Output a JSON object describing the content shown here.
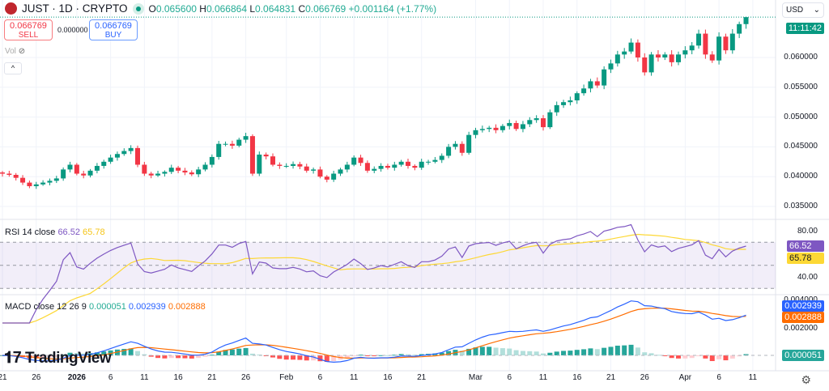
{
  "header": {
    "symbol_title": "JUST · 1D · CRYPTO",
    "o_label": "O",
    "o": "0.065600",
    "h_label": "H",
    "h": "0.066864",
    "l_label": "L",
    "l": "0.064831",
    "c_label": "C",
    "c": "0.066769",
    "change": "+0.001164 (+1.77%)"
  },
  "trade": {
    "sell_price": "0.066769",
    "sell_label": "SELL",
    "spread": "0.000000",
    "buy_price": "0.066769",
    "buy_label": "BUY"
  },
  "volume": {
    "label": "Vol",
    "icon": "eye-off-icon"
  },
  "collapse": {
    "icon": "chevron-up-icon",
    "glyph": "^"
  },
  "currency": {
    "label": "USD",
    "glyph": "⌄"
  },
  "countdown": "11:11:42",
  "colors": {
    "up": "#089981",
    "down": "#f23645",
    "rsi": "#7e57c2",
    "rsi_ma": "#fdd835",
    "macd": "#2962ff",
    "signal": "#ff6d00"
  },
  "price_axis": [
    "0.060000",
    "0.055000",
    "0.050000",
    "0.045000",
    "0.040000",
    "0.035000"
  ],
  "rsi": {
    "title": "RSI 14 close",
    "value": "66.52",
    "ma_value": "65.78",
    "axis": [
      "80.00",
      "40.00"
    ]
  },
  "macd": {
    "title": "MACD close 12 26 9",
    "hist": "0.000051",
    "macd": "0.002939",
    "signal": "0.002888",
    "axis": [
      "0.004000",
      "0.002000"
    ]
  },
  "x_axis": [
    "21",
    "26",
    "2026",
    "6",
    "11",
    "16",
    "21",
    "26",
    "Feb",
    "6",
    "11",
    "16",
    "21",
    "Mar",
    "6",
    "11",
    "16",
    "21",
    "26",
    "Apr",
    "6",
    "11"
  ],
  "brand": "TradingView",
  "chart_data": {
    "type": "candlestick",
    "first_date": "2025-12-20",
    "last_date": "2026-04-09",
    "ylim": [
      0.033,
      0.068
    ],
    "closes": [
      0.0405,
      0.0403,
      0.0398,
      0.039,
      0.0384,
      0.0387,
      0.039,
      0.0393,
      0.0397,
      0.0412,
      0.042,
      0.0405,
      0.0402,
      0.041,
      0.0418,
      0.0425,
      0.0432,
      0.0438,
      0.0443,
      0.0448,
      0.042,
      0.0405,
      0.0402,
      0.0405,
      0.0408,
      0.0415,
      0.041,
      0.0407,
      0.0404,
      0.0412,
      0.042,
      0.0433,
      0.0455,
      0.0455,
      0.0452,
      0.0462,
      0.0468,
      0.0405,
      0.0437,
      0.0434,
      0.042,
      0.0418,
      0.0418,
      0.0421,
      0.0417,
      0.041,
      0.0412,
      0.04,
      0.0395,
      0.0405,
      0.0412,
      0.042,
      0.0432,
      0.0423,
      0.041,
      0.0413,
      0.0418,
      0.0415,
      0.042,
      0.0425,
      0.0418,
      0.0415,
      0.0425,
      0.0425,
      0.0428,
      0.0435,
      0.045,
      0.0455,
      0.044,
      0.047,
      0.0478,
      0.048,
      0.0482,
      0.0478,
      0.0485,
      0.049,
      0.048,
      0.0488,
      0.0495,
      0.0498,
      0.0483,
      0.0508,
      0.052,
      0.0525,
      0.0528,
      0.054,
      0.0548,
      0.056,
      0.0553,
      0.058,
      0.059,
      0.0605,
      0.061,
      0.0625,
      0.06,
      0.0575,
      0.0605,
      0.06,
      0.0605,
      0.0592,
      0.0605,
      0.0612,
      0.062,
      0.064,
      0.0605,
      0.0595,
      0.0635,
      0.0612,
      0.064,
      0.0656,
      0.066769
    ],
    "first_open": 0.0407,
    "last_high": 0.066864,
    "last_low": 0.064831
  }
}
